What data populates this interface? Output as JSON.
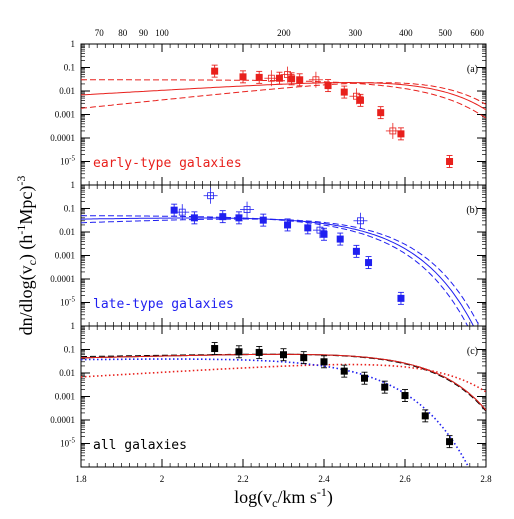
{
  "colors": {
    "early": "#e8201c",
    "late": "#1f1ff0",
    "all": "#000000",
    "dotted_purple": "#a01090",
    "axes": "#000000"
  },
  "chart_data": {
    "type": "scatter",
    "log_scale_y": true,
    "x_range": [
      1.8,
      2.8
    ],
    "y_range_exponent": [
      -6,
      0
    ],
    "shared_xlabel": "log(v_c/km s^-1)",
    "shared_ylabel": "dn/dlog(v_c)   (h^-1Mpc)^-3",
    "x_ticks": [
      "1.8",
      "2",
      "2.2",
      "2.4",
      "2.6",
      "2.8"
    ],
    "top_axis_label_note": "linear velocity scale",
    "top_ticks": [
      "70",
      "80",
      "90",
      "100",
      "200",
      "300",
      "400",
      "500",
      "600"
    ],
    "y_tick_labels": [
      "1",
      "0.1",
      "0.01",
      "0.001",
      "0.0001",
      "10^-5"
    ],
    "panels": [
      {
        "tag": "(a)",
        "label": "early-type galaxies",
        "color_key": "early",
        "filled": [
          {
            "x": 2.13,
            "y": 0.07
          },
          {
            "x": 2.2,
            "y": 0.04
          },
          {
            "x": 2.24,
            "y": 0.038
          },
          {
            "x": 2.29,
            "y": 0.035
          },
          {
            "x": 2.32,
            "y": 0.033
          },
          {
            "x": 2.34,
            "y": 0.03
          },
          {
            "x": 2.41,
            "y": 0.017
          },
          {
            "x": 2.45,
            "y": 0.009
          },
          {
            "x": 2.49,
            "y": 0.004
          },
          {
            "x": 2.54,
            "y": 0.0012
          },
          {
            "x": 2.59,
            "y": 0.00015
          },
          {
            "x": 2.71,
            "y": 1e-05
          }
        ],
        "open": [
          {
            "x": 2.27,
            "y": 0.035
          },
          {
            "x": 2.31,
            "y": 0.05
          },
          {
            "x": 2.38,
            "y": 0.03
          },
          {
            "x": 2.48,
            "y": 0.006
          },
          {
            "x": 2.57,
            "y": 0.0002
          }
        ],
        "curves": [
          {
            "style": "solid",
            "phi": 0.045,
            "alpha": 1.0,
            "beta": 3.2,
            "vstar": 2.62
          },
          {
            "style": "dashed",
            "phi": 0.03,
            "alpha": 0.0,
            "beta": 3.2,
            "vstar": 2.62
          },
          {
            "style": "dashed",
            "phi": 0.055,
            "alpha": 1.8,
            "beta": 3.2,
            "vstar": 2.62
          }
        ]
      },
      {
        "tag": "(b)",
        "label": "late-type galaxies",
        "color_key": "late",
        "filled": [
          {
            "x": 2.03,
            "y": 0.085
          },
          {
            "x": 2.08,
            "y": 0.04
          },
          {
            "x": 2.15,
            "y": 0.045
          },
          {
            "x": 2.19,
            "y": 0.04
          },
          {
            "x": 2.25,
            "y": 0.032
          },
          {
            "x": 2.31,
            "y": 0.02
          },
          {
            "x": 2.36,
            "y": 0.015
          },
          {
            "x": 2.4,
            "y": 0.008
          },
          {
            "x": 2.44,
            "y": 0.005
          },
          {
            "x": 2.48,
            "y": 0.0015
          },
          {
            "x": 2.51,
            "y": 0.0005
          },
          {
            "x": 2.59,
            "y": 1.5e-05
          }
        ],
        "open": [
          {
            "x": 2.05,
            "y": 0.07
          },
          {
            "x": 2.12,
            "y": 0.35
          },
          {
            "x": 2.21,
            "y": 0.09
          },
          {
            "x": 2.39,
            "y": 0.012
          },
          {
            "x": 2.49,
            "y": 0.03
          }
        ],
        "curves": [
          {
            "style": "solid",
            "phi": 0.055,
            "alpha": 0.3,
            "beta": 3.0,
            "vstar": 2.42
          },
          {
            "style": "dashed",
            "phi": 0.05,
            "alpha": 0.0,
            "beta": 3.0,
            "vstar": 2.41
          },
          {
            "style": "dashed",
            "phi": 0.06,
            "alpha": 0.6,
            "beta": 3.0,
            "vstar": 2.43
          }
        ]
      },
      {
        "tag": "(c)",
        "label": "all galaxies",
        "color_key": "all",
        "filled": [
          {
            "x": 2.13,
            "y": 0.11
          },
          {
            "x": 2.19,
            "y": 0.08
          },
          {
            "x": 2.24,
            "y": 0.075
          },
          {
            "x": 2.3,
            "y": 0.06
          },
          {
            "x": 2.35,
            "y": 0.045
          },
          {
            "x": 2.4,
            "y": 0.03
          },
          {
            "x": 2.45,
            "y": 0.012
          },
          {
            "x": 2.5,
            "y": 0.006
          },
          {
            "x": 2.55,
            "y": 0.0025
          },
          {
            "x": 2.6,
            "y": 0.0011
          },
          {
            "x": 2.65,
            "y": 0.00015
          },
          {
            "x": 2.71,
            "y": 1.2e-05
          }
        ],
        "open": [],
        "curves": [
          {
            "style": "solid",
            "color_key": "all",
            "phi": 0.09,
            "alpha": 0.4,
            "beta": 3.4,
            "vstar": 2.57
          },
          {
            "style": "dashed",
            "color_key": "all",
            "phi": 0.085,
            "alpha": 0.3,
            "beta": 3.4,
            "vstar": 2.57
          },
          {
            "style": "solid",
            "color_key": "early",
            "phi": 0.09,
            "alpha": 0.4,
            "beta": 3.4,
            "vstar": 2.57
          },
          {
            "style": "dotted",
            "color_key": "early",
            "phi": 0.045,
            "alpha": 1.0,
            "beta": 3.2,
            "vstar": 2.62
          },
          {
            "style": "dotted",
            "color_key": "late",
            "phi": 0.05,
            "alpha": 0.2,
            "beta": 3.0,
            "vstar": 2.41
          }
        ]
      }
    ]
  }
}
